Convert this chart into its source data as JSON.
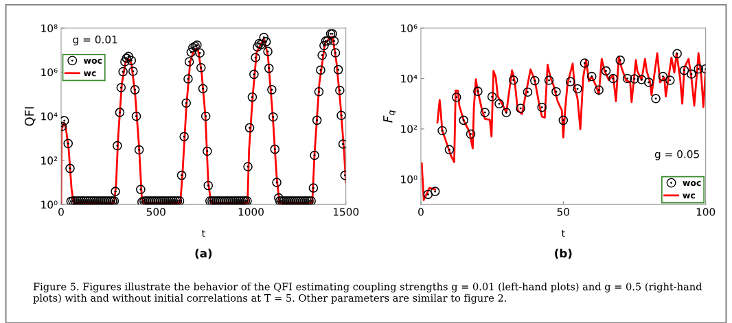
{
  "chart_data": [
    {
      "type": "line",
      "xlabel": "t",
      "ylabel": "QFI",
      "xlim": [
        0,
        1500
      ],
      "xticks": [
        0,
        500,
        1000,
        1500
      ],
      "ylim": [
        1,
        100000000
      ],
      "yticks": [
        {
          "value": 1,
          "label": "10⁰"
        },
        {
          "value": 100,
          "label": "10²"
        },
        {
          "value": 10000,
          "label": "10⁴"
        },
        {
          "value": 1000000,
          "label": "10⁶"
        },
        {
          "value": 100000000,
          "label": "10⁸"
        }
      ],
      "log": "y",
      "grid": false,
      "legend": "top left",
      "annotations": [
        "g = 0.01",
        "(a)",
        "Figure 5. Figures illustrate the behavior of the QFI estimating coupling strengths g = 0.01 (left-hand plots) and g = 0.5 (right-hand plots) with and without initial correlations at T = 5. Other parameters are similar to figure 2."
      ],
      "series": [
        {
          "name": "woc",
          "type": "scatter",
          "marker": "circle",
          "color": "#000000",
          "x": [
            5,
            17,
            37,
            47,
            52,
            62,
            73,
            84,
            95,
            106,
            117,
            128,
            139,
            150,
            161,
            172,
            183,
            194,
            205,
            216,
            227,
            238,
            249,
            260,
            271,
            280,
            286,
            296,
            309,
            316,
            326,
            336,
            345,
            355,
            370,
            379,
            389,
            396,
            411,
            419,
            426,
            437,
            448,
            459,
            470,
            481,
            492,
            503,
            514,
            525,
            536,
            547,
            558,
            569,
            580,
            591,
            602,
            613,
            624,
            635,
            648,
            659,
            669,
            675,
            685,
            694,
            706,
            716,
            731,
            737,
            747,
            762,
            770,
            775,
            784,
            795,
            806,
            817,
            828,
            839,
            850,
            861,
            872,
            883,
            894,
            905,
            916,
            927,
            938,
            949,
            960,
            971,
            980,
            984,
            993,
            1007,
            1016,
            1024,
            1034,
            1043,
            1053,
            1068,
            1080,
            1089,
            1095,
            1110,
            1117,
            1126,
            1136,
            1146,
            1152,
            1163,
            1174,
            1185,
            1196,
            1207,
            1218,
            1229,
            1240,
            1251,
            1262,
            1273,
            1284,
            1295,
            1306,
            1317,
            1329,
            1335,
            1348,
            1358,
            1367,
            1375,
            1385,
            1394,
            1404,
            1420,
            1429,
            1438,
            1445,
            1460,
            1468,
            1476,
            1485,
            1495
          ],
          "values": [
            3500,
            6300,
            580,
            43,
            1.4,
            1.45,
            1.45,
            1.45,
            1.45,
            1.45,
            1.45,
            1.45,
            1.45,
            1.45,
            1.45,
            1.45,
            1.45,
            1.45,
            1.45,
            1.45,
            1.45,
            1.45,
            1.45,
            1.45,
            1.45,
            1.45,
            3.9,
            460,
            15000,
            200000,
            1050000,
            3000000,
            4300000,
            5200000,
            3400000,
            1100000,
            160000,
            10000,
            300,
            4.8,
            1.3,
            1.45,
            1.45,
            1.45,
            1.45,
            1.45,
            1.45,
            1.45,
            1.45,
            1.45,
            1.45,
            1.45,
            1.45,
            1.45,
            1.45,
            1.45,
            1.45,
            1.45,
            1.45,
            21,
            1200,
            40000,
            500000,
            3000000,
            8000000,
            13000000,
            15000000,
            17000000,
            7400000,
            1600000,
            180000,
            10000,
            260,
            7.2,
            1.45,
            1.45,
            1.45,
            1.45,
            1.45,
            1.45,
            1.45,
            1.45,
            1.45,
            1.45,
            1.45,
            1.45,
            1.45,
            1.45,
            1.45,
            1.45,
            1.45,
            1.45,
            1.45,
            52,
            3000,
            74000,
            800000,
            4600000,
            14000000,
            20000000,
            18000000,
            38000000,
            24000000,
            8700000,
            1500000,
            160000,
            9300,
            320,
            10,
            2,
            1.45,
            1.45,
            1.45,
            1.45,
            1.45,
            1.45,
            1.45,
            1.45,
            1.45,
            1.45,
            1.45,
            1.45,
            1.45,
            1.45,
            1.45,
            1.45,
            5.6,
            170,
            6600,
            130000,
            1250000,
            5900000,
            16000000,
            26000000,
            26000000,
            55000000,
            55000000,
            26000000,
            7600000,
            1300000,
            150000,
            11000,
            550,
            21
          ]
        },
        {
          "name": "wc",
          "type": "line",
          "line_style": "solid",
          "color": "#ff0000",
          "x": [
            0,
            2,
            15,
            25,
            40,
            55,
            65,
            280,
            290,
            300,
            320,
            340,
            355,
            370,
            390,
            410,
            425,
            435,
            628,
            640,
            660,
            680,
            700,
            720,
            740,
            760,
            775,
            790,
            982,
            990,
            1010,
            1030,
            1060,
            1070,
            1090,
            1115,
            1135,
            1150,
            1323,
            1335,
            1360,
            1390,
            1420,
            1430,
            1450,
            1470,
            1490,
            1500
          ],
          "values": [
            1,
            2500,
            5000,
            3000,
            300,
            5,
            1.2,
            1.2,
            10,
            1000,
            300000,
            3000000,
            4000000,
            2500000,
            100000,
            500,
            2,
            1.2,
            1.2,
            30,
            30000,
            3000000,
            10000000,
            12000000,
            1000000,
            10000,
            10,
            1.2,
            1.2,
            300,
            100000,
            8000000,
            25000000,
            30000000,
            5000000,
            10000,
            20,
            1.2,
            1.2,
            200,
            300000,
            20000000,
            40000000,
            40000000,
            3000000,
            50000,
            300,
            10
          ]
        }
      ]
    },
    {
      "type": "line",
      "xlabel": "t",
      "ylabel": "F$_{q}$",
      "xlim": [
        0,
        100
      ],
      "xticks": [
        0,
        50,
        100
      ],
      "ylim": [
        0.1,
        1000000
      ],
      "yticks": [
        {
          "value": 1,
          "label": "10⁰"
        },
        {
          "value": 100,
          "label": "10²"
        },
        {
          "value": 10000,
          "label": "10⁴"
        },
        {
          "value": 1000000,
          "label": "10⁶"
        }
      ],
      "log": "y",
      "grid": false,
      "legend": "bottom right",
      "annotations": [
        "g = 0.05",
        "(b)"
      ],
      "series": [
        {
          "name": "woc",
          "type": "scatter",
          "marker": "circle",
          "color": "#000000",
          "x": [
            2.5,
            5,
            7.5,
            10,
            12.5,
            15,
            17.5,
            20,
            22.5,
            25,
            27.5,
            30,
            32.5,
            35,
            37.5,
            40,
            42.5,
            45,
            47.5,
            50,
            52.5,
            55,
            57.5,
            60,
            62.5,
            65,
            67.5,
            70,
            72.5,
            75,
            77.5,
            80,
            82.5,
            85,
            87.5,
            90,
            92.5,
            95,
            97.5,
            100
          ],
          "values": [
            0.25,
            0.33,
            85,
            15,
            1800,
            220,
            62,
            3100,
            450,
            1900,
            1000,
            450,
            8700,
            650,
            2900,
            8200,
            720,
            8500,
            3000,
            220,
            7500,
            3900,
            41000,
            12000,
            3500,
            20000,
            10000,
            53000,
            10000,
            9700,
            9100,
            7100,
            1600,
            12000,
            8500,
            97000,
            21000,
            15000,
            24000,
            24000
          ]
        },
        {
          "name": "wc",
          "type": "line",
          "line_style": "solid",
          "color": "#ff0000",
          "x": [
            0.3,
            1,
            3,
            5,
            5.6,
            5.8,
            6.6,
            7,
            7.5,
            8.5,
            10.5,
            11.7,
            12.2,
            13,
            13.5,
            15,
            17,
            18.2,
            18.6,
            19.3,
            20,
            21.5,
            22.5,
            24.2,
            24.8,
            25.5,
            26.3,
            27,
            28.5,
            30,
            31,
            32,
            33,
            34,
            35.5,
            37,
            38.5,
            40,
            41.5,
            42.5,
            43.5,
            44.5,
            45.5,
            46.5,
            48,
            49.5,
            50,
            50.7,
            51.5,
            53.3,
            54,
            55,
            56,
            57,
            58,
            59,
            60,
            61.5,
            62.5,
            63.5,
            64.5,
            66,
            67.5,
            68.5,
            69.5,
            70.5,
            72,
            73.5,
            74,
            75.5,
            76,
            77.5,
            78.7,
            79.3,
            80.5,
            81,
            83,
            84,
            85.5,
            86,
            88,
            89,
            89.8,
            91,
            91.8,
            92.5,
            94,
            95,
            96,
            97.5,
            98.5,
            99.2,
            100
          ],
          "values": [
            4.3,
            0.15,
            0.45,
            0.4,
            null,
            180,
            1400,
            440,
            85,
            41,
            9,
            4.8,
            3300,
            3300,
            830,
            220,
            78,
            17,
            660,
            9300,
            3100,
            540,
            250,
            230,
            50,
            20000,
            11000,
            1950,
            1000,
            440,
            3000,
            21000,
            7000,
            540,
            390,
            3000,
            23000,
            8700,
            1000,
            310,
            280,
            35000,
            11000,
            5700,
            1260,
            540,
            46,
            660,
            6300,
            39000,
            4600,
            1580,
            97,
            11000,
            54000,
            7900,
            12000,
            5100,
            2400,
            60000,
            20000,
            8700,
            13500,
            1260,
            74000,
            26000,
            8700,
            7000,
            1150,
            54000,
            20000,
            8700,
            60000,
            20000,
            7000,
            2200,
            100000,
            7000,
            11000,
            1950,
            67000,
            17000,
            100000,
            11000,
            1000,
            26000,
            60000,
            11000,
            830,
            100000,
            11000,
            740,
            20000
          ]
        }
      ]
    }
  ]
}
